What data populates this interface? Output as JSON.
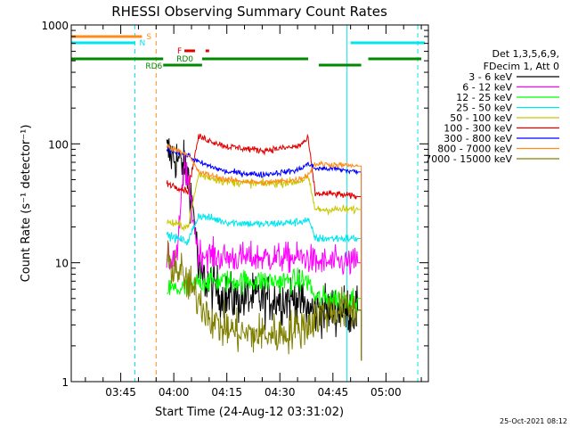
{
  "chart_data": {
    "type": "line",
    "title": "RHESSI Observing Summary Count Rates",
    "xlabel": "Start Time (24-Aug-12 03:31:02)",
    "ylabel": "Count Rate (s⁻¹ detector⁻¹)",
    "yscale": "log",
    "ylim": [
      1,
      1000
    ],
    "yticks": [
      {
        "value": 1,
        "label": "1"
      },
      {
        "value": 10,
        "label": "10"
      },
      {
        "value": 100,
        "label": "100"
      },
      {
        "value": 1000,
        "label": "1000"
      }
    ],
    "xlim": [
      "03:31",
      "05:12"
    ],
    "xticks": [
      "03:45",
      "04:00",
      "04:15",
      "04:30",
      "04:45",
      "05:00"
    ],
    "legend_header": [
      "Det 1,3,5,6,9,",
      "FDecim 1, Att 0"
    ],
    "legend_position": "right",
    "timestamp": "25-Oct-2021 08:12",
    "flags": [
      {
        "label": "S",
        "color": "#ff8c1a",
        "segments": [
          [
            "03:31",
            "03:51"
          ]
        ]
      },
      {
        "label": "N",
        "color": "#00e5ee",
        "segments": [
          [
            "03:31",
            "03:49"
          ],
          [
            "04:50",
            "05:11"
          ]
        ]
      },
      {
        "label": "F",
        "color": "#e00000",
        "segments": [
          [
            "04:03",
            "04:06"
          ],
          [
            "04:09",
            "04:10"
          ]
        ]
      },
      {
        "label": "RD0",
        "color": "#008800",
        "segments": [
          [
            "04:01",
            "04:07"
          ]
        ]
      },
      {
        "label": "RD6",
        "color": "#008800",
        "segments": [
          [
            "03:31",
            "03:57"
          ],
          [
            "03:57",
            "04:08"
          ],
          [
            "04:08",
            "04:38"
          ],
          [
            "04:41",
            "04:53"
          ],
          [
            "04:55",
            "05:10"
          ]
        ]
      }
    ],
    "vlines": [
      {
        "time": "03:31",
        "color": "#00e5ee",
        "style": "solid"
      },
      {
        "time": "03:49",
        "color": "#00e5ee",
        "style": "dashed"
      },
      {
        "time": "03:55",
        "color": "#ff8c1a",
        "style": "dashed"
      },
      {
        "time": "04:49",
        "color": "#00e5ee",
        "style": "solid"
      },
      {
        "time": "05:09",
        "color": "#00e5ee",
        "style": "dashed"
      }
    ],
    "series": [
      {
        "name": "3 - 6 keV",
        "color": "#000000",
        "noise": 0.3,
        "points": [
          [
            "03:58",
            85
          ],
          [
            "04:01",
            75
          ],
          [
            "04:04",
            55
          ],
          [
            "04:06",
            22
          ],
          [
            "04:07",
            8
          ],
          [
            "04:15",
            5
          ],
          [
            "04:25",
            5
          ],
          [
            "04:35",
            5
          ],
          [
            "04:38",
            4
          ],
          [
            "04:40",
            4
          ],
          [
            "04:45",
            4
          ],
          [
            "04:52",
            4
          ],
          [
            "04:53",
            2
          ]
        ]
      },
      {
        "name": "6 - 12 keV",
        "color": "#ff00ff",
        "noise": 0.18,
        "points": [
          [
            "03:58",
            10
          ],
          [
            "04:01",
            12
          ],
          [
            "04:03",
            70
          ],
          [
            "04:05",
            30
          ],
          [
            "04:07",
            12
          ],
          [
            "04:15",
            11
          ],
          [
            "04:25",
            11
          ],
          [
            "04:35",
            11
          ],
          [
            "04:38",
            11
          ],
          [
            "04:40",
            10
          ],
          [
            "04:45",
            10
          ],
          [
            "04:52",
            10
          ],
          [
            "04:53",
            1.5
          ]
        ]
      },
      {
        "name": "12 - 25 keV",
        "color": "#00ff00",
        "noise": 0.14,
        "points": [
          [
            "03:58",
            6
          ],
          [
            "04:01",
            6
          ],
          [
            "04:05",
            6
          ],
          [
            "04:07",
            7
          ],
          [
            "04:15",
            7
          ],
          [
            "04:25",
            7
          ],
          [
            "04:35",
            7
          ],
          [
            "04:38",
            7
          ],
          [
            "04:40",
            5
          ],
          [
            "04:45",
            5
          ],
          [
            "04:52",
            5
          ],
          [
            "04:53",
            1.5
          ]
        ]
      },
      {
        "name": "25 - 50 keV",
        "color": "#00e5ee",
        "noise": 0.05,
        "points": [
          [
            "03:58",
            17
          ],
          [
            "04:04",
            15
          ],
          [
            "04:07",
            25
          ],
          [
            "04:15",
            22
          ],
          [
            "04:25",
            21
          ],
          [
            "04:35",
            22
          ],
          [
            "04:38",
            23
          ],
          [
            "04:40",
            16
          ],
          [
            "04:45",
            16
          ],
          [
            "04:52",
            16
          ],
          [
            "04:53",
            1.5
          ]
        ]
      },
      {
        "name": "50 - 100 keV",
        "color": "#c8c800",
        "noise": 0.05,
        "points": [
          [
            "03:58",
            22
          ],
          [
            "04:04",
            20
          ],
          [
            "04:07",
            55
          ],
          [
            "04:15",
            48
          ],
          [
            "04:25",
            46
          ],
          [
            "04:35",
            48
          ],
          [
            "04:38",
            52
          ],
          [
            "04:40",
            28
          ],
          [
            "04:45",
            28
          ],
          [
            "04:52",
            28
          ],
          [
            "04:53",
            1.5
          ]
        ]
      },
      {
        "name": "100 - 300 keV",
        "color": "#e00000",
        "noise": 0.04,
        "points": [
          [
            "03:58",
            47
          ],
          [
            "04:04",
            40
          ],
          [
            "04:07",
            115
          ],
          [
            "04:15",
            95
          ],
          [
            "04:25",
            88
          ],
          [
            "04:35",
            95
          ],
          [
            "04:38",
            110
          ],
          [
            "04:40",
            38
          ],
          [
            "04:45",
            38
          ],
          [
            "04:52",
            36
          ],
          [
            "04:53",
            1.5
          ]
        ]
      },
      {
        "name": "300 - 800 keV",
        "color": "#0000ff",
        "noise": 0.035,
        "points": [
          [
            "03:58",
            90
          ],
          [
            "04:04",
            80
          ],
          [
            "04:07",
            70
          ],
          [
            "04:15",
            58
          ],
          [
            "04:25",
            55
          ],
          [
            "04:35",
            60
          ],
          [
            "04:38",
            68
          ],
          [
            "04:40",
            62
          ],
          [
            "04:45",
            62
          ],
          [
            "04:52",
            58
          ],
          [
            "04:53",
            1.5
          ]
        ]
      },
      {
        "name": "800 - 7000 keV",
        "color": "#ff8c1a",
        "noise": 0.035,
        "points": [
          [
            "03:58",
            95
          ],
          [
            "04:04",
            82
          ],
          [
            "04:07",
            58
          ],
          [
            "04:15",
            50
          ],
          [
            "04:25",
            47
          ],
          [
            "04:35",
            50
          ],
          [
            "04:38",
            55
          ],
          [
            "04:40",
            68
          ],
          [
            "04:45",
            67
          ],
          [
            "04:52",
            65
          ],
          [
            "04:53",
            1.5
          ]
        ]
      },
      {
        "name": "7000 - 15000 keV",
        "color": "#808000",
        "noise": 0.25,
        "points": [
          [
            "03:58",
            10
          ],
          [
            "04:01",
            9
          ],
          [
            "04:05",
            6
          ],
          [
            "04:07",
            5
          ],
          [
            "04:12",
            3
          ],
          [
            "04:20",
            2.5
          ],
          [
            "04:30",
            2.5
          ],
          [
            "04:38",
            3
          ],
          [
            "04:40",
            3.5
          ],
          [
            "04:45",
            4
          ],
          [
            "04:52",
            4
          ],
          [
            "04:53",
            1.5
          ]
        ]
      }
    ]
  }
}
